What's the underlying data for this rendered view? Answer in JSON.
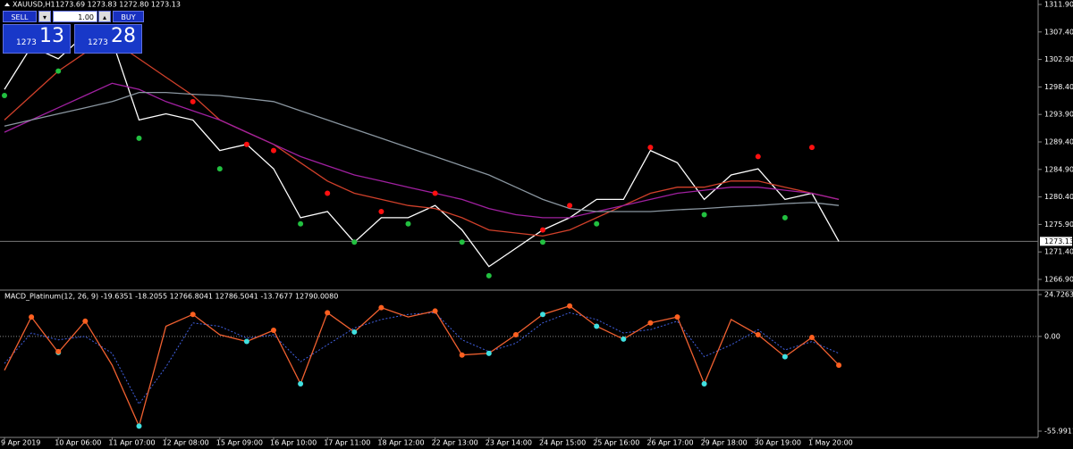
{
  "header": {
    "symbol": "XAUUSD,H1",
    "ohlc": "1273.69 1273.83 1272.80 1273.13"
  },
  "trade_panel": {
    "sell": "SELL",
    "lot": "1.00",
    "buy": "BUY",
    "bid_main": "1273",
    "bid_pips": "13",
    "ask_main": "1273",
    "ask_pips": "28"
  },
  "chart_data": [
    {
      "type": "line",
      "current_price": 1273.13,
      "ylim": [
        1265.15,
        1312.63
      ],
      "yticks": [
        {
          "value": 1311.9,
          "label": "1311.90"
        },
        {
          "value": 1307.4,
          "label": "1307.40"
        },
        {
          "value": 1302.9,
          "label": "1302.90"
        },
        {
          "value": 1298.4,
          "label": "1298.40"
        },
        {
          "value": 1293.9,
          "label": "1293.90"
        },
        {
          "value": 1289.4,
          "label": "1289.40"
        },
        {
          "value": 1284.9,
          "label": "1284.90"
        },
        {
          "value": 1280.4,
          "label": "1280.40"
        },
        {
          "value": 1275.9,
          "label": "1275.90"
        },
        {
          "value": 1271.4,
          "label": "1271.40"
        },
        {
          "value": 1266.9,
          "label": "1266.90"
        }
      ],
      "series": [
        {
          "color": "#ffffff",
          "style": "line",
          "values": [
            1298,
            1305,
            1303,
            1307,
            1306,
            1293,
            1294,
            1293,
            1288,
            1289,
            1285,
            1277,
            1278,
            1273,
            1277,
            1277,
            1279,
            1275,
            1269,
            1272,
            1275,
            1277,
            1280,
            1280,
            1288,
            1286,
            1280,
            1284,
            1285,
            1280,
            1281,
            1273.13
          ]
        },
        {
          "color": "#d0402a",
          "style": "line",
          "values": [
            1293,
            1297,
            1301,
            1304,
            1306,
            1303,
            1300,
            1297,
            1293,
            1291,
            1289,
            1286,
            1283,
            1281,
            1280,
            1279,
            1278.5,
            1277,
            1275,
            1274.5,
            1274,
            1275,
            1277,
            1279,
            1281,
            1282,
            1282,
            1283,
            1283,
            1282,
            1281,
            1280
          ]
        },
        {
          "color": "#a020a0",
          "style": "line",
          "values": [
            1291,
            1293,
            1295,
            1297,
            1299,
            1298,
            1296,
            1294.5,
            1293,
            1291,
            1289,
            1287,
            1285.5,
            1284,
            1283,
            1282,
            1281,
            1280,
            1278.5,
            1277.5,
            1277,
            1277,
            1278,
            1279,
            1280,
            1281,
            1281.5,
            1282,
            1282,
            1281.5,
            1281,
            1280
          ]
        },
        {
          "color": "#8a96a0",
          "style": "line",
          "values": [
            1292,
            1293,
            1294,
            1295,
            1296,
            1297.5,
            1297.5,
            1297.2,
            1297,
            1296.5,
            1296,
            1294.5,
            1293,
            1291.5,
            1290,
            1288.5,
            1287,
            1285.5,
            1284,
            1282,
            1280,
            1278.5,
            1278,
            1278,
            1278,
            1278.3,
            1278.5,
            1278.8,
            1279,
            1279.3,
            1279.5,
            1279
          ]
        },
        {
          "color": "#22c040",
          "style": "dots",
          "values": [
            1297,
            null,
            1301,
            null,
            null,
            1290,
            null,
            null,
            1285,
            null,
            null,
            1276,
            null,
            1273,
            null,
            1276,
            null,
            1273,
            1267.5,
            null,
            1273,
            null,
            1276,
            null,
            null,
            null,
            1277.5,
            null,
            null,
            1277,
            null,
            null
          ]
        },
        {
          "color": "#ff1010",
          "style": "dots",
          "values": [
            null,
            null,
            null,
            null,
            null,
            null,
            null,
            1296,
            null,
            1289,
            1288,
            null,
            1281,
            null,
            1278,
            null,
            1281,
            null,
            null,
            null,
            1275,
            1279,
            null,
            null,
            1288.5,
            null,
            null,
            null,
            1287,
            null,
            1288.5,
            null
          ]
        }
      ]
    },
    {
      "type": "line",
      "title": "MACD_Platinum(12, 26, 9) -19.6351 -18.2055 12766.8041 12786.5041 -13.7677 12790.0080",
      "ylim": [
        -55.9911,
        24.7263
      ],
      "yticks": [
        24.7263,
        {
          "value": 0,
          "label": "0.00"
        },
        -55.9911
      ],
      "categories": [
        "9 Apr 2019",
        null,
        "10 Apr 06:00",
        null,
        "11 Apr 07:00",
        null,
        "12 Apr 08:00",
        null,
        "15 Apr 09:00",
        null,
        "16 Apr 10:00",
        null,
        "17 Apr 11:00",
        null,
        "18 Apr 12:00",
        null,
        "22 Apr 13:00",
        null,
        "23 Apr 14:00",
        null,
        "24 Apr 15:00",
        null,
        "25 Apr 16:00",
        null,
        "26 Apr 17:00",
        null,
        "29 Apr 18:00",
        null,
        "30 Apr 19:00",
        null,
        "1 May 20:00",
        null
      ],
      "series": [
        {
          "color": "#4060e0",
          "style": "dashed",
          "values": [
            -16,
            2,
            -2,
            0,
            -10,
            -40,
            -18,
            8,
            6,
            -1,
            1,
            -15,
            -5,
            5,
            10,
            13,
            14,
            -2,
            -9,
            -4,
            8,
            14,
            10,
            2,
            4,
            9,
            -12,
            -5,
            4,
            -8,
            -3,
            -10
          ]
        },
        {
          "color": "#f06030",
          "style": "line",
          "values": [
            -20,
            11.5,
            -9.5,
            9,
            -17,
            -53,
            6,
            13,
            1,
            -3,
            3.6,
            -28,
            14,
            2.6,
            17,
            11.5,
            15,
            -11,
            -10,
            1,
            13,
            18,
            6,
            -1.6,
            8,
            11.5,
            -28,
            10,
            1,
            -12,
            -0.6,
            -17
          ]
        },
        {
          "color": "#40e0e0",
          "style": "dots",
          "values": [
            null,
            null,
            -9.5,
            null,
            null,
            -53,
            null,
            null,
            null,
            -3,
            null,
            -28,
            null,
            2.6,
            null,
            null,
            null,
            null,
            -10,
            null,
            13,
            null,
            6,
            -1.6,
            null,
            null,
            -28,
            null,
            null,
            -12,
            null,
            null
          ]
        },
        {
          "color": "#ff6020",
          "style": "dots",
          "values": [
            null,
            11.5,
            -9,
            9,
            null,
            null,
            null,
            13,
            null,
            null,
            3.6,
            null,
            14,
            null,
            17,
            null,
            15,
            -11,
            null,
            1,
            null,
            18,
            null,
            null,
            8,
            11.5,
            null,
            null,
            1,
            null,
            -0.6,
            -17
          ]
        }
      ]
    }
  ]
}
